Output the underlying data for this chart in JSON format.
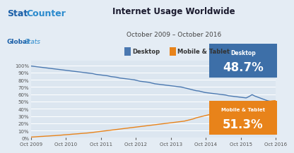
{
  "title": "Internet Usage Worldwide",
  "subtitle": "October 2009 – October 2016",
  "bg_color": "#e4ecf4",
  "plot_bg_color": "#dce6f0",
  "grid_color": "#ffffff",
  "desktop_color": "#4a78b0",
  "mobile_color": "#e8831a",
  "desktop_label": "Desktop",
  "mobile_label": "Mobile & Tablet",
  "desktop_final": "48.7%",
  "mobile_final": "51.3%",
  "desktop_box_color": "#3d6fa8",
  "mobile_box_color": "#e8831a",
  "xtick_labels": [
    "Oct 2009",
    "Oct 2010",
    "Oct 2011",
    "Oct 2012",
    "Oct 2013",
    "Oct 2014",
    "Oct 2015",
    "Oct 2016"
  ],
  "ytick_labels": [
    "0%",
    "10%",
    "20%",
    "30%",
    "40%",
    "50%",
    "60%",
    "70%",
    "80%",
    "90%",
    "100%"
  ],
  "desktop_data": [
    99.0,
    98.5,
    98.0,
    97.5,
    97.0,
    96.5,
    96.0,
    95.5,
    95.0,
    94.5,
    94.0,
    93.5,
    93.0,
    92.5,
    92.0,
    91.5,
    91.0,
    90.5,
    90.0,
    89.5,
    89.0,
    88.5,
    87.5,
    87.0,
    86.5,
    86.0,
    85.5,
    84.5,
    84.0,
    83.5,
    82.5,
    82.0,
    81.5,
    81.0,
    80.5,
    80.0,
    79.0,
    78.0,
    77.5,
    77.0,
    76.5,
    75.5,
    74.5,
    74.0,
    73.5,
    73.0,
    72.5,
    72.0,
    71.5,
    71.0,
    70.5,
    70.0,
    69.0,
    68.0,
    67.0,
    66.0,
    65.0,
    64.5,
    63.5,
    62.5,
    62.0,
    61.5,
    61.0,
    60.5,
    60.0,
    59.5,
    59.0,
    58.0,
    57.5,
    57.0,
    56.5,
    56.0,
    55.5,
    55.0,
    57.0,
    59.5,
    57.5,
    56.0,
    54.5,
    53.0,
    51.5,
    50.5,
    49.5,
    48.7
  ],
  "mobile_data": [
    1.0,
    1.2,
    1.5,
    1.8,
    2.0,
    2.3,
    2.5,
    2.8,
    3.0,
    3.3,
    3.6,
    4.0,
    4.3,
    4.6,
    5.0,
    5.3,
    5.6,
    6.0,
    6.3,
    6.6,
    7.0,
    7.5,
    8.0,
    8.5,
    9.0,
    9.5,
    10.0,
    10.5,
    11.0,
    11.5,
    12.0,
    12.5,
    13.0,
    13.5,
    14.0,
    14.5,
    15.0,
    15.5,
    16.0,
    16.5,
    17.0,
    17.5,
    18.0,
    18.5,
    19.0,
    19.5,
    20.0,
    20.5,
    21.0,
    21.5,
    22.0,
    22.5,
    23.0,
    24.0,
    25.0,
    26.0,
    27.5,
    28.5,
    29.5,
    30.5,
    31.5,
    32.5,
    33.5,
    34.5,
    35.5,
    36.5,
    37.5,
    38.0,
    38.5,
    39.5,
    40.5,
    41.5,
    42.5,
    43.5,
    41.5,
    39.5,
    42.0,
    44.0,
    46.0,
    48.0,
    49.5,
    50.5,
    51.0,
    51.3
  ],
  "n_points": 84
}
